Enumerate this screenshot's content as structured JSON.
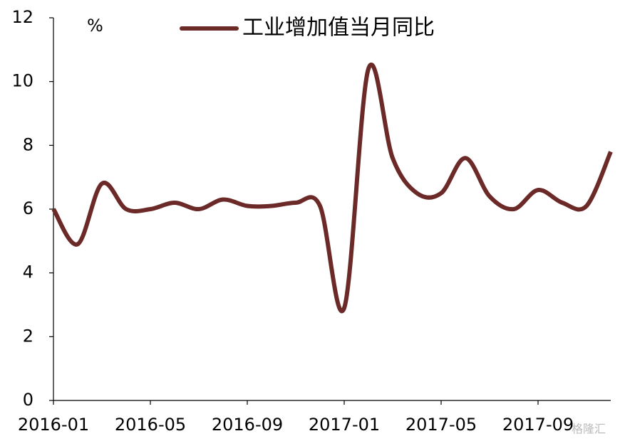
{
  "chart_data": {
    "type": "line",
    "unit": "%",
    "watermark": "格隆汇",
    "categories": [
      "2016-01",
      null,
      null,
      null,
      "2016-05",
      null,
      null,
      null,
      "2016-09",
      null,
      null,
      null,
      "2017-01",
      null,
      null,
      null,
      "2017-05",
      null,
      null,
      null,
      "2017-09",
      null,
      null,
      null
    ],
    "series": [
      {
        "name": "工业增加值当月同比",
        "color": "#6b2a27",
        "values": [
          6.0,
          4.9,
          6.8,
          6.0,
          6.0,
          6.2,
          6.0,
          6.3,
          6.1,
          6.1,
          6.2,
          6.1,
          2.9,
          10.4,
          7.6,
          6.5,
          6.5,
          7.6,
          6.4,
          6.0,
          6.6,
          6.2,
          6.1,
          7.8
        ]
      }
    ],
    "ylim": [
      0,
      12
    ],
    "yticks": [
      0,
      2,
      4,
      6,
      8,
      10,
      12
    ],
    "grid": false
  }
}
